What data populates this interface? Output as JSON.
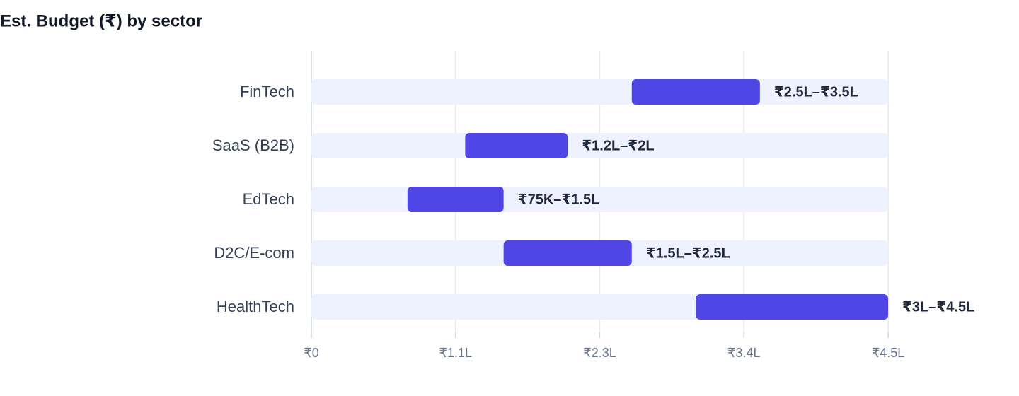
{
  "chart_data": {
    "type": "range_bar",
    "title": "Est. Budget (₹) by sector",
    "categories": [
      "FinTech",
      "SaaS (B2B)",
      "EdTech",
      "D2C/E-com",
      "HealthTech"
    ],
    "low": [
      250000,
      120000,
      75000,
      150000,
      300000
    ],
    "high": [
      350000,
      200000,
      150000,
      250000,
      450000
    ],
    "value_labels": [
      "₹2.5L–₹3.5L",
      "₹1.2L–₹2L",
      "₹75K–₹1.5L",
      "₹1.5L–₹2.5L",
      "₹3L–₹4.5L"
    ],
    "color": "#4f46e5",
    "track_color": "#eef2ff",
    "xlim": [
      0,
      450000
    ],
    "xticks": [
      {
        "value": 0,
        "label": "₹0"
      },
      {
        "value": 112500,
        "label": "₹1.1L"
      },
      {
        "value": 225000,
        "label": "₹2.3L"
      },
      {
        "value": 337500,
        "label": "₹3.4L"
      },
      {
        "value": 450000,
        "label": "₹4.5L"
      }
    ],
    "grid": true
  }
}
